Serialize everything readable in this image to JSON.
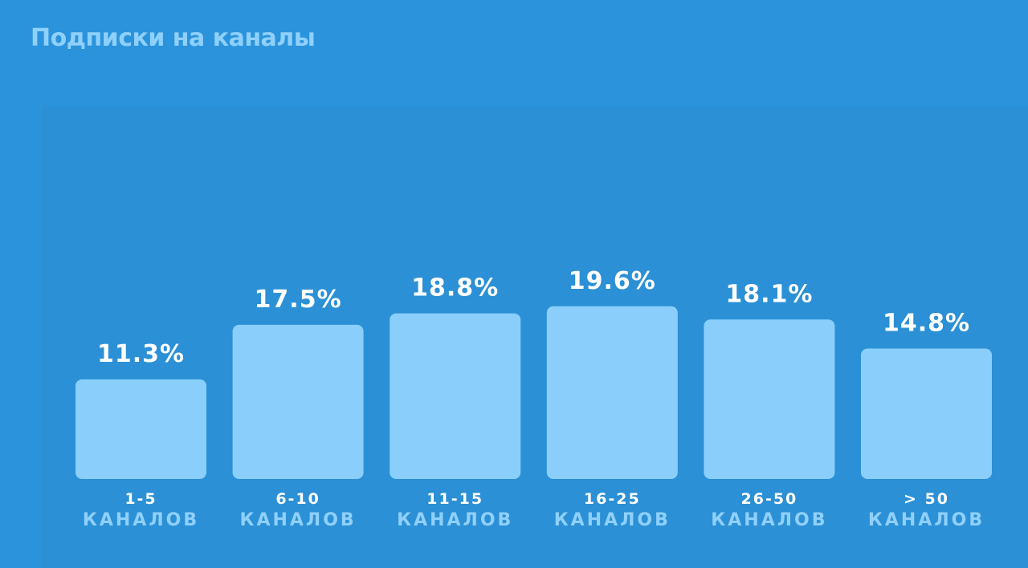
{
  "chart_data": {
    "type": "bar",
    "title": "Подписки на каналы",
    "categories": [
      "1-5",
      "6-10",
      "11-15",
      "16-25",
      "26-50",
      "> 50"
    ],
    "category_unit": "КАНАЛОВ",
    "values": [
      11.3,
      17.5,
      18.8,
      19.6,
      18.1,
      14.8
    ],
    "value_labels": [
      "11.3%",
      "17.5%",
      "18.8%",
      "19.6%",
      "18.1%",
      "14.8%"
    ],
    "xlabel": "",
    "ylabel": "",
    "ylim": [
      0,
      21.5
    ],
    "grid": false,
    "legend": "none",
    "colors": {
      "background": "#2a93db",
      "bar": "#8acffb",
      "value_text": "#ffffff",
      "unit_text": "#8fd0fb"
    }
  }
}
